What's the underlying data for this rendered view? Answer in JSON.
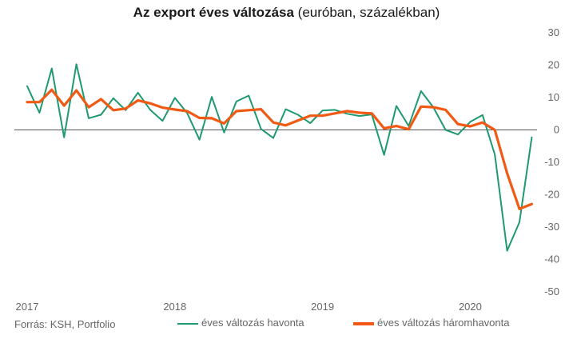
{
  "header": {
    "title_bold": "Az export éves változása",
    "title_rest": " (euróban, százalékban)"
  },
  "footer": {
    "source": "Forrás: KSH, Portfolio"
  },
  "chart_data": {
    "type": "line",
    "title": "Az export éves változása (euróban, százalékban)",
    "x_tick_labels": [
      "2017",
      "2018",
      "2019",
      "2020"
    ],
    "y_ticks": [
      30,
      20,
      10,
      0,
      -10,
      -20,
      -30,
      -40,
      -50
    ],
    "ylim": [
      -50,
      30
    ],
    "grid": false,
    "zero_line": true,
    "legend_position": "bottom",
    "x_start": "2017-01",
    "series": [
      {
        "name": "éves változás havonta",
        "color": "#1e9a6e",
        "values": [
          13.5,
          5.3,
          19,
          -2.3,
          20.3,
          3.6,
          4.7,
          9.8,
          6.1,
          11.5,
          6.2,
          2.8,
          9.9,
          5.2,
          -3,
          10.2,
          -0.8,
          8.8,
          10.6,
          0.3,
          -2.5,
          6.4,
          4.7,
          2.1,
          6,
          6.2,
          5,
          4.3,
          4.8,
          -7.7,
          7.4,
          1.2,
          12,
          7,
          0,
          -1.4,
          2.5,
          4.6,
          -7.6,
          -37.3,
          -28.5,
          -2.3
        ]
      },
      {
        "name": "éves változás háromhavonta",
        "color": "#f05a14",
        "values": [
          8.6,
          8.6,
          12.4,
          7.5,
          12.2,
          7,
          9.5,
          6.1,
          6.6,
          9.1,
          8.2,
          6.9,
          6.3,
          5.8,
          3.7,
          3.6,
          2,
          5.8,
          6.1,
          6.4,
          2.3,
          1.4,
          2.9,
          4.4,
          4.4,
          5.1,
          5.8,
          5.3,
          5.1,
          0.5,
          1.2,
          0.2,
          7.2,
          7,
          6.2,
          1.8,
          1.1,
          2.3,
          0,
          -13.4,
          -24.4,
          -22.9
        ]
      }
    ]
  }
}
